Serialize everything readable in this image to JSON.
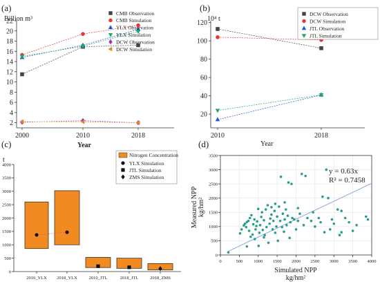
{
  "chart_data": [
    {
      "panel": "(a)",
      "type": "line",
      "title": "",
      "ylabel": "Billion m³",
      "xlabel": "Year",
      "x": [
        2000,
        2010,
        2018
      ],
      "xticks": [
        "2000",
        "2010",
        "2018"
      ],
      "ylim": [
        1,
        22
      ],
      "yticks": [
        "2",
        "4",
        "6",
        "8",
        "10",
        "12",
        "14",
        "16",
        "18",
        "20",
        "22"
      ],
      "ytick_values": [
        2,
        4,
        6,
        8,
        10,
        12,
        14,
        16,
        18,
        20,
        22
      ],
      "legend_position": "top-right",
      "series": [
        {
          "name": "CMB Observation",
          "color": "#444444",
          "marker": "square",
          "values": [
            11.5,
            16.9,
            17.2
          ]
        },
        {
          "name": "CMB Simulation",
          "color": "#ee3333",
          "marker": "circle",
          "values": [
            15.3,
            19.4,
            21.1
          ]
        },
        {
          "name": "YLX Observation",
          "color": "#2255dd",
          "marker": "triangle-up",
          "values": [
            14.8,
            17.2,
            20.3
          ]
        },
        {
          "name": "YLX Simulation",
          "color": "#22aa66",
          "marker": "triangle-down",
          "values": [
            15.0,
            17.0,
            19.9
          ]
        },
        {
          "name": "DCW Observation",
          "color": "#9933cc",
          "marker": "diamond",
          "values": [
            2.1,
            2.4,
            2.0
          ]
        },
        {
          "name": "DCW Simulation",
          "color": "#dd8822",
          "marker": "triangle-left",
          "values": [
            2.2,
            2.2,
            2.0
          ]
        }
      ]
    },
    {
      "panel": "(b)",
      "type": "line",
      "title": "",
      "ylabel": "10⁴ t",
      "xlabel": "Year",
      "x": [
        2010,
        2018
      ],
      "xticks": [
        "2010",
        "2018"
      ],
      "ylim": [
        5,
        122
      ],
      "yticks": [
        "20",
        "40",
        "60",
        "80",
        "100",
        "120"
      ],
      "ytick_values": [
        20,
        40,
        60,
        80,
        100,
        120
      ],
      "legend_position": "top-right",
      "series": [
        {
          "name": "DCW Observation",
          "color": "#444444",
          "marker": "square",
          "values": [
            113,
            92
          ]
        },
        {
          "name": "DCW Simulation",
          "color": "#ee3333",
          "marker": "circle",
          "values": [
            104,
            101
          ]
        },
        {
          "name": "JTL Observation",
          "color": "#2255dd",
          "marker": "triangle-up",
          "values": [
            14,
            41
          ]
        },
        {
          "name": "JTL Simulation",
          "color": "#22aa66",
          "marker": "triangle-down",
          "values": [
            24,
            41
          ]
        }
      ]
    },
    {
      "panel": "(c)",
      "type": "bar",
      "title": "",
      "ylabel": "t",
      "xlabel": "",
      "categories": [
        "2010_YLX",
        "2018_YLX",
        "2010_JTL",
        "2018_JTL",
        "2018_ZMS"
      ],
      "ylim": [
        0,
        4000
      ],
      "yticks": [
        "0",
        "500",
        "1000",
        "1500",
        "2000",
        "2500",
        "3000",
        "3500",
        "4000"
      ],
      "ytick_values": [
        0,
        500,
        1000,
        1500,
        2000,
        2500,
        3000,
        3500,
        4000
      ],
      "legend_position": "top-right",
      "box_color": "#f28a22",
      "ranges": [
        {
          "low": 860,
          "high": 2600
        },
        {
          "low": 1000,
          "high": 3020
        },
        {
          "low": 150,
          "high": 530
        },
        {
          "low": 120,
          "high": 500
        },
        {
          "low": 60,
          "high": 300
        }
      ],
      "series": [
        {
          "name": "Nitrogen Concentration",
          "type": "range"
        },
        {
          "name": "YLX Simulation",
          "marker": "circle",
          "values": [
            1370,
            1470,
            null,
            null,
            null
          ]
        },
        {
          "name": "JTL Simulation",
          "marker": "square",
          "values": [
            null,
            null,
            200,
            160,
            null
          ]
        },
        {
          "name": "ZMS Simulation",
          "marker": "diamond",
          "values": [
            null,
            null,
            null,
            null,
            110
          ]
        }
      ]
    },
    {
      "panel": "(d)",
      "type": "scatter",
      "title": "",
      "xlabel": "Simulated NPP",
      "xlabel_unit": "kg/hm²",
      "ylabel": "Measured NPP",
      "ylabel_unit": "kg/hm²",
      "xlim": [
        0,
        4000
      ],
      "ylim": [
        0,
        3500
      ],
      "xticks": [
        "0",
        "500",
        "1000",
        "1500",
        "2000",
        "2500",
        "3000",
        "3500",
        "4000"
      ],
      "xtick_values": [
        0,
        500,
        1000,
        1500,
        2000,
        2500,
        3000,
        3500,
        4000
      ],
      "yticks": [
        "0",
        "500",
        "1000",
        "1500",
        "2000",
        "2500",
        "3000",
        "3500"
      ],
      "ytick_values": [
        0,
        500,
        1000,
        1500,
        2000,
        2500,
        3000,
        3500
      ],
      "grid": true,
      "point_color": "#2a9d8f",
      "line_color": "#88aadd",
      "equation": "y = 0.63x",
      "r_squared": "R² = 0.7458",
      "fit": {
        "slope": 0.63
      },
      "points": [
        [
          210,
          90
        ],
        [
          520,
          760
        ],
        [
          560,
          900
        ],
        [
          620,
          1040
        ],
        [
          650,
          1100
        ],
        [
          680,
          980
        ],
        [
          700,
          1160
        ],
        [
          740,
          1200
        ],
        [
          760,
          850
        ],
        [
          780,
          1300
        ],
        [
          800,
          640
        ],
        [
          820,
          1400
        ],
        [
          850,
          720
        ],
        [
          870,
          1080
        ],
        [
          900,
          1250
        ],
        [
          910,
          560
        ],
        [
          930,
          900
        ],
        [
          950,
          1020
        ],
        [
          970,
          1180
        ],
        [
          1000,
          1620
        ],
        [
          1010,
          320
        ],
        [
          1030,
          780
        ],
        [
          1050,
          1050
        ],
        [
          1080,
          1340
        ],
        [
          1100,
          1500
        ],
        [
          1120,
          880
        ],
        [
          1150,
          1220
        ],
        [
          1170,
          700
        ],
        [
          1200,
          1600
        ],
        [
          1220,
          980
        ],
        [
          1250,
          1750
        ],
        [
          1270,
          430
        ],
        [
          1300,
          1100
        ],
        [
          1320,
          1280
        ],
        [
          1350,
          1420
        ],
        [
          1380,
          900
        ],
        [
          1400,
          1200
        ],
        [
          1430,
          1550
        ],
        [
          1450,
          780
        ],
        [
          1480,
          1000
        ],
        [
          1500,
          1350
        ],
        [
          1520,
          500
        ],
        [
          1550,
          1700
        ],
        [
          1580,
          1200
        ],
        [
          1600,
          2750
        ],
        [
          1630,
          980
        ],
        [
          1650,
          1450
        ],
        [
          1680,
          820
        ],
        [
          1700,
          1250
        ],
        [
          1730,
          1600
        ],
        [
          1750,
          1050
        ],
        [
          1780,
          1380
        ],
        [
          1800,
          2550
        ],
        [
          1830,
          600
        ],
        [
          1850,
          1150
        ],
        [
          1880,
          2500
        ],
        [
          1900,
          1300
        ],
        [
          1950,
          1250
        ],
        [
          2000,
          900
        ],
        [
          2050,
          1200
        ],
        [
          2100,
          1450
        ],
        [
          2150,
          2850
        ],
        [
          2200,
          1050
        ],
        [
          2250,
          2780
        ],
        [
          2300,
          1300
        ],
        [
          2400,
          1200
        ],
        [
          2450,
          1500
        ],
        [
          2500,
          1000
        ],
        [
          2600,
          1300
        ],
        [
          2650,
          1150
        ],
        [
          2700,
          2050
        ],
        [
          2750,
          800
        ],
        [
          2800,
          3000
        ],
        [
          2850,
          2000
        ],
        [
          2900,
          900
        ],
        [
          2950,
          1250
        ],
        [
          3000,
          1100
        ],
        [
          3100,
          1600
        ],
        [
          3150,
          700
        ],
        [
          3200,
          1550
        ],
        [
          3300,
          1300
        ],
        [
          3400,
          1150
        ],
        [
          3500,
          850
        ],
        [
          3600,
          1050
        ],
        [
          3850,
          1350
        ],
        [
          3900,
          1250
        ],
        [
          3200,
          800
        ],
        [
          700,
          300
        ],
        [
          1150,
          620
        ],
        [
          1350,
          1680
        ],
        [
          1450,
          1800
        ],
        [
          2050,
          1650
        ],
        [
          1700,
          1850
        ]
      ]
    }
  ]
}
